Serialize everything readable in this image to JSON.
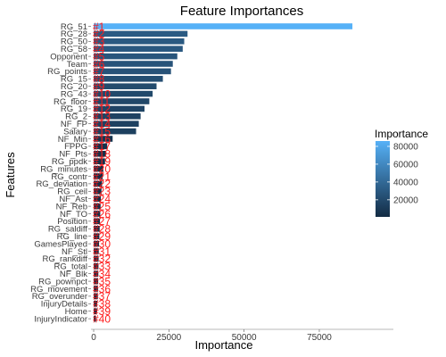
{
  "chart_data": {
    "type": "bar",
    "orientation": "horizontal",
    "title": "Feature Importances",
    "xlabel": "Importance",
    "ylabel": "Features",
    "xlim": [
      0,
      90000
    ],
    "xticks": [
      0,
      25000,
      50000,
      75000
    ],
    "xtick_labels": [
      "0",
      "25000",
      "50000",
      "75000"
    ],
    "grid": false,
    "categories": [
      "RG_51",
      "RG_28",
      "RG_50",
      "RG_58",
      "Opponent",
      "Team",
      "RG_points",
      "RG_15",
      "RG_20",
      "RG_43",
      "RG_floor",
      "RG_19",
      "RG_2",
      "NF_FP",
      "Salary",
      "NF_Min",
      "FPPG",
      "NF_Pts",
      "RG_ppdk",
      "RG_minutes",
      "RG_contr",
      "RG_deviation",
      "RG_ceil",
      "NF_Ast",
      "NF_Reb",
      "NF_TO",
      "Position",
      "RG_saldiff",
      "RG_line",
      "GamesPlayed",
      "NF_Stl",
      "RG_rankdiff",
      "RG_total",
      "NF_Blk",
      "RG_pownpct",
      "RG_movement",
      "RG_overunder",
      "InjuryDetails",
      "Home",
      "InjuryIndicator"
    ],
    "ranks": [
      "#1",
      "#2",
      "#3",
      "#4",
      "#5",
      "#6",
      "#7",
      "#8",
      "#9",
      "#10",
      "#11",
      "#12",
      "#13",
      "#14",
      "#15",
      "#16",
      "#17",
      "#18",
      "#19",
      "#20",
      "#21",
      "#22",
      "#23",
      "#24",
      "#25",
      "#26",
      "#27",
      "#28",
      "#29",
      "#30",
      "#31",
      "#32",
      "#33",
      "#34",
      "#35",
      "#36",
      "#37",
      "#38",
      "#39",
      "#40"
    ],
    "values": [
      86000,
      31200,
      30100,
      29600,
      27800,
      26300,
      25700,
      23000,
      20900,
      19600,
      18500,
      16900,
      15600,
      15000,
      14100,
      6300,
      4500,
      4100,
      3800,
      3200,
      3000,
      2800,
      2600,
      2400,
      2300,
      2200,
      2100,
      2000,
      1900,
      1800,
      1700,
      1650,
      1600,
      1550,
      1500,
      1450,
      1400,
      1200,
      1100,
      800
    ],
    "legend": {
      "title": "Importance",
      "position": "right",
      "ticks": [
        20000,
        40000,
        60000,
        80000
      ],
      "tick_labels": [
        "20000",
        "40000",
        "60000",
        "80000"
      ],
      "color_low": "#132B43",
      "color_high": "#56B1F7"
    }
  }
}
